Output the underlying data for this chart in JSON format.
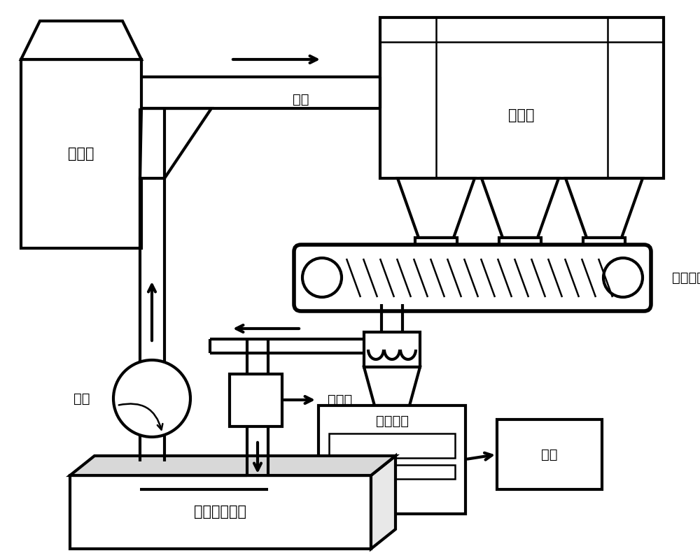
{
  "bg": "#ffffff",
  "lc": "#000000",
  "lw": 3.0,
  "lw_thin": 1.8,
  "fs": 14,
  "fs_big": 15,
  "fp": "SimHei",
  "labels": {
    "desuan": "脱酸塔",
    "fenguan": "风管",
    "chucheng": "除尘器",
    "jiahui": "集灰皮带",
    "fenliu": "分流装置",
    "huiku": "灰库",
    "liuliang": "流量计",
    "fengji": "风机",
    "wujiezhi": "无介质研磨机"
  },
  "figsize": [
    10.0,
    8.01
  ],
  "dpi": 100
}
